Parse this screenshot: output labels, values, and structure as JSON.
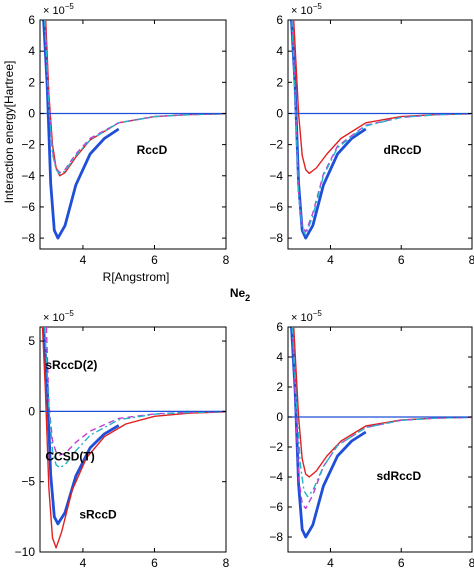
{
  "figure": {
    "ylabel": "Interaction energy[Hartree]",
    "xlabel": "R[Angstrom]",
    "title": "Ne",
    "title_subscript": "2"
  },
  "chart_data": [
    {
      "type": "line",
      "exponent_label": "× 10",
      "exponent_power": "−5",
      "xlim": [
        2.8,
        8
      ],
      "ylim": [
        -8.7,
        6
      ],
      "xticks": [
        4,
        6,
        8
      ],
      "xtick_labels": [
        "4",
        "6",
        "8"
      ],
      "yticks": [
        -8,
        -6,
        -4,
        -2,
        0,
        2,
        4,
        6
      ],
      "ytick_labels": [
        "−8",
        "−6",
        "−4",
        "−2",
        "0",
        "2",
        "4",
        "6"
      ],
      "annotations": [
        {
          "text": "RccD",
          "x": 5.5,
          "y": -2.6
        }
      ],
      "series": [
        {
          "color": "#1f4fd8",
          "style": "solid",
          "width": 2.8,
          "x": [
            2.9,
            3.0,
            3.1,
            3.2,
            3.3,
            3.5,
            3.8,
            4.2,
            4.6,
            5.0
          ],
          "y": [
            6.0,
            1.8,
            -4.5,
            -7.5,
            -8.0,
            -7.2,
            -4.6,
            -2.6,
            -1.6,
            -1.0
          ]
        },
        {
          "color": "#e02020",
          "style": "solid",
          "width": 1.4,
          "x": [
            2.96,
            3.05,
            3.15,
            3.25,
            3.35,
            3.5,
            3.8,
            4.2,
            5.0,
            6.0,
            7.0,
            8.0
          ],
          "y": [
            6.0,
            1.2,
            -2.0,
            -3.5,
            -4.0,
            -3.8,
            -2.8,
            -1.7,
            -0.6,
            -0.2,
            -0.07,
            -0.02
          ]
        },
        {
          "color": "#c23bd6",
          "style": "dashed",
          "width": 1.4,
          "x": [
            2.94,
            3.05,
            3.15,
            3.25,
            3.35,
            3.5,
            3.8,
            4.2,
            5.0,
            6.0,
            7.0,
            8.0
          ],
          "y": [
            6.0,
            0.8,
            -2.4,
            -3.5,
            -3.8,
            -3.6,
            -2.6,
            -1.6,
            -0.6,
            -0.2,
            -0.07,
            -0.02
          ]
        },
        {
          "color": "#24b3c9",
          "style": "dashdot",
          "width": 1.4,
          "x": [
            2.93,
            3.05,
            3.15,
            3.25,
            3.35,
            3.5,
            3.8,
            4.2,
            5.0,
            6.0,
            7.0,
            8.0
          ],
          "y": [
            6.0,
            0.4,
            -2.6,
            -3.6,
            -3.9,
            -3.7,
            -2.7,
            -1.7,
            -0.6,
            -0.2,
            -0.07,
            -0.02
          ]
        },
        {
          "color": "#1f4fd8",
          "style": "solid",
          "width": 1.2,
          "x": [
            2.8,
            8.0
          ],
          "y": [
            0,
            0
          ]
        }
      ]
    },
    {
      "type": "line",
      "exponent_label": "× 10",
      "exponent_power": "−5",
      "xlim": [
        2.8,
        8
      ],
      "ylim": [
        -8.7,
        6
      ],
      "xticks": [
        4,
        6,
        8
      ],
      "xtick_labels": [
        "4",
        "6",
        "8"
      ],
      "yticks": [
        -8,
        -6,
        -4,
        -2,
        0,
        2,
        4,
        6
      ],
      "ytick_labels": [
        "−8",
        "−6",
        "−4",
        "−2",
        "0",
        "2",
        "4",
        "6"
      ],
      "annotations": [
        {
          "text": "dRccD",
          "x": 5.5,
          "y": -2.6
        }
      ],
      "series": [
        {
          "color": "#1f4fd8",
          "style": "solid",
          "width": 2.8,
          "x": [
            2.9,
            3.0,
            3.1,
            3.2,
            3.3,
            3.5,
            3.8,
            4.2,
            4.6,
            5.0
          ],
          "y": [
            6.0,
            1.8,
            -4.5,
            -7.5,
            -8.0,
            -7.2,
            -4.6,
            -2.6,
            -1.6,
            -1.0
          ]
        },
        {
          "color": "#e02020",
          "style": "solid",
          "width": 1.4,
          "x": [
            2.96,
            3.1,
            3.2,
            3.3,
            3.4,
            3.6,
            3.9,
            4.3,
            5.0,
            6.0,
            7.0,
            8.0
          ],
          "y": [
            6.0,
            0.0,
            -2.7,
            -3.6,
            -3.85,
            -3.5,
            -2.6,
            -1.6,
            -0.6,
            -0.2,
            -0.07,
            -0.02
          ]
        },
        {
          "color": "#c23bd6",
          "style": "dashed",
          "width": 1.4,
          "x": [
            2.92,
            3.0,
            3.1,
            3.2,
            3.3,
            3.5,
            3.8,
            4.2,
            5.0,
            6.0,
            7.0,
            8.0
          ],
          "y": [
            6.0,
            1.5,
            -5.0,
            -7.2,
            -7.6,
            -6.4,
            -3.9,
            -2.1,
            -0.75,
            -0.25,
            -0.08,
            -0.02
          ]
        },
        {
          "color": "#24b3c9",
          "style": "dashdot",
          "width": 1.4,
          "x": [
            2.91,
            3.0,
            3.1,
            3.2,
            3.3,
            3.5,
            3.8,
            4.2,
            5.0,
            6.0,
            7.0,
            8.0
          ],
          "y": [
            6.0,
            1.2,
            -5.2,
            -7.4,
            -7.8,
            -6.6,
            -4.0,
            -2.2,
            -0.8,
            -0.25,
            -0.08,
            -0.02
          ]
        },
        {
          "color": "#1f4fd8",
          "style": "solid",
          "width": 1.2,
          "x": [
            2.8,
            8.0
          ],
          "y": [
            0,
            0
          ]
        }
      ]
    },
    {
      "type": "line",
      "exponent_label": "× 10",
      "exponent_power": "−5",
      "xlim": [
        2.8,
        8
      ],
      "ylim": [
        -10,
        6
      ],
      "xticks": [
        4,
        6,
        8
      ],
      "xtick_labels": [
        "4",
        "6",
        "8"
      ],
      "yticks": [
        -10,
        -5,
        0,
        5
      ],
      "ytick_labels": [
        "−10",
        "−5",
        "0",
        "5"
      ],
      "annotations": [
        {
          "text": "sRccD(2)",
          "x": 2.95,
          "y": 3.0
        },
        {
          "text": "CCSD(T)",
          "x": 2.95,
          "y": -3.5
        },
        {
          "text": "sRccD",
          "x": 3.9,
          "y": -7.6
        }
      ],
      "series": [
        {
          "color": "#1f4fd8",
          "style": "solid",
          "width": 2.8,
          "x": [
            2.9,
            3.0,
            3.1,
            3.2,
            3.3,
            3.5,
            3.8,
            4.2,
            4.6,
            5.0
          ],
          "y": [
            6.0,
            1.8,
            -4.5,
            -7.5,
            -8.0,
            -7.2,
            -4.6,
            -2.6,
            -1.6,
            -1.0
          ]
        },
        {
          "color": "#e02020",
          "style": "solid",
          "width": 1.4,
          "x": [
            2.87,
            2.95,
            3.05,
            3.15,
            3.25,
            3.4,
            3.7,
            4.1,
            4.6,
            5.2,
            6.0,
            7.0,
            8.0
          ],
          "y": [
            6.0,
            1.5,
            -5.5,
            -9.0,
            -9.7,
            -8.6,
            -5.6,
            -3.3,
            -1.8,
            -0.9,
            -0.35,
            -0.12,
            -0.04
          ]
        },
        {
          "color": "#c23bd6",
          "style": "dashed",
          "width": 1.4,
          "x": [
            2.98,
            3.05,
            3.15,
            3.25,
            3.35,
            3.5,
            3.8,
            4.2,
            5.0,
            6.0,
            7.0,
            8.0
          ],
          "y": [
            6.0,
            0.5,
            -2.1,
            -2.9,
            -3.1,
            -3.0,
            -2.2,
            -1.4,
            -0.5,
            -0.18,
            -0.06,
            -0.02
          ]
        },
        {
          "color": "#24b3c9",
          "style": "dashdot",
          "width": 1.4,
          "x": [
            2.93,
            3.05,
            3.15,
            3.25,
            3.35,
            3.5,
            3.8,
            4.2,
            5.0,
            6.0,
            7.0,
            8.0
          ],
          "y": [
            6.0,
            0.3,
            -2.8,
            -3.8,
            -4.0,
            -3.8,
            -2.8,
            -1.7,
            -0.6,
            -0.2,
            -0.07,
            -0.02
          ]
        },
        {
          "color": "#1f4fd8",
          "style": "solid",
          "width": 1.2,
          "x": [
            2.8,
            8.0
          ],
          "y": [
            0,
            0
          ]
        }
      ]
    },
    {
      "type": "line",
      "exponent_label": "× 10",
      "exponent_power": "−5",
      "xlim": [
        2.8,
        8
      ],
      "ylim": [
        -9,
        6
      ],
      "xticks": [
        4,
        6,
        8
      ],
      "xtick_labels": [
        "4",
        "6",
        "8"
      ],
      "yticks": [
        -8,
        -6,
        -4,
        -2,
        0,
        2,
        4,
        6
      ],
      "ytick_labels": [
        "−8",
        "−6",
        "−4",
        "−2",
        "0",
        "2",
        "4",
        "6"
      ],
      "annotations": [
        {
          "text": "sdRccD",
          "x": 5.3,
          "y": -4.2
        }
      ],
      "series": [
        {
          "color": "#1f4fd8",
          "style": "solid",
          "width": 2.8,
          "x": [
            2.9,
            3.0,
            3.1,
            3.2,
            3.3,
            3.5,
            3.8,
            4.2,
            4.6,
            5.0
          ],
          "y": [
            6.0,
            1.8,
            -4.5,
            -7.5,
            -8.0,
            -7.2,
            -4.6,
            -2.6,
            -1.6,
            -1.0
          ]
        },
        {
          "color": "#e02020",
          "style": "solid",
          "width": 1.4,
          "x": [
            2.96,
            3.1,
            3.2,
            3.3,
            3.4,
            3.6,
            3.9,
            4.3,
            5.0,
            6.0,
            7.0,
            8.0
          ],
          "y": [
            6.0,
            0.0,
            -2.8,
            -3.8,
            -4.0,
            -3.6,
            -2.6,
            -1.6,
            -0.6,
            -0.2,
            -0.07,
            -0.02
          ]
        },
        {
          "color": "#c23bd6",
          "style": "dashed",
          "width": 1.4,
          "x": [
            2.93,
            3.0,
            3.1,
            3.2,
            3.3,
            3.5,
            3.8,
            4.2,
            5.0,
            6.0,
            7.0,
            8.0
          ],
          "y": [
            6.0,
            1.5,
            -4.0,
            -5.8,
            -6.1,
            -5.2,
            -3.3,
            -1.9,
            -0.7,
            -0.22,
            -0.07,
            -0.02
          ]
        },
        {
          "color": "#24b3c9",
          "style": "dashdot",
          "width": 1.4,
          "x": [
            2.92,
            3.05,
            3.15,
            3.25,
            3.35,
            3.5,
            3.8,
            4.2,
            5.0,
            6.0,
            7.0,
            8.0
          ],
          "y": [
            6.0,
            0.5,
            -3.2,
            -4.9,
            -5.3,
            -4.9,
            -3.3,
            -1.9,
            -0.7,
            -0.22,
            -0.07,
            -0.02
          ]
        },
        {
          "color": "#1f4fd8",
          "style": "solid",
          "width": 1.2,
          "x": [
            2.8,
            8.0
          ],
          "y": [
            0,
            0
          ]
        }
      ]
    }
  ]
}
